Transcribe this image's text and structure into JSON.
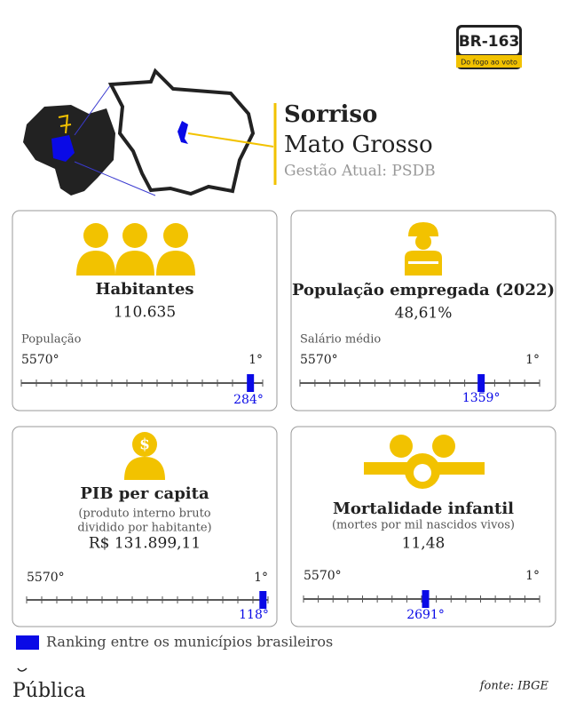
{
  "header": {
    "logo_title": "BR-163",
    "logo_subtitle": "Do fogo ao voto",
    "city": "Sorriso",
    "state": "Mato Grosso",
    "administration": "Gestão Atual: PSDB"
  },
  "cards": [
    {
      "title": "Habitantes",
      "subtitle": [],
      "value": "110.635",
      "scale_label": "População",
      "scale": {
        "left": {
          "value": 5570,
          "label": "5570°"
        },
        "right": {
          "value": 1,
          "label": "1°"
        },
        "marker": {
          "value": 284,
          "label": "284°"
        }
      }
    },
    {
      "title": "População empregada (2022)",
      "subtitle": [],
      "value": "48,61%",
      "scale_label": "Salário médio",
      "scale": {
        "left": {
          "value": 5570,
          "label": "5570°"
        },
        "right": {
          "value": 1,
          "label": "1°"
        },
        "marker": {
          "value": 1359,
          "label": "1359°"
        }
      }
    },
    {
      "title": "PIB per capita",
      "subtitle": [
        "(produto interno bruto",
        "dividido por habitante)"
      ],
      "value": "R$ 131.899,11",
      "scale_label": null,
      "scale": {
        "left": {
          "value": 5570,
          "label": "5570°"
        },
        "right": {
          "value": 1,
          "label": "1°"
        },
        "marker": {
          "value": 118,
          "label": "118°"
        }
      }
    },
    {
      "title": "Mortalidade infantil",
      "subtitle": [
        "(mortes por mil nascidos vivos)"
      ],
      "value": "11,48",
      "scale_label": null,
      "scale": {
        "left": {
          "value": 5570,
          "label": "5570°"
        },
        "right": {
          "value": 1,
          "label": "1°"
        },
        "marker": {
          "value": 2691,
          "label": "2691°"
        }
      }
    }
  ],
  "legend": {
    "label": "Ranking entre os municípios brasileiros",
    "color": "#0a0ae6"
  },
  "footer": {
    "publisher": "Pública",
    "source": "fonte: IBGE"
  }
}
